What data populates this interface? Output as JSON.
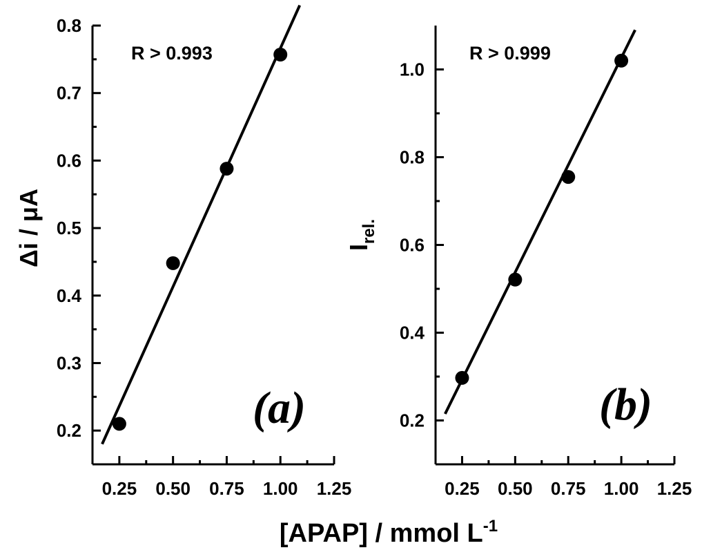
{
  "figure": {
    "xlabel_main": "[APAP] / mmol L",
    "xlabel_sup": "-1"
  },
  "chart_data": [
    {
      "type": "scatter",
      "panel_label": "(a)",
      "annotation": "R > 0.993",
      "ylabel": "Δi / μA",
      "ylabel_main": "Δi / μA",
      "xlabel": "[APAP] / mmol L-1",
      "xlim": [
        0.125,
        1.25
      ],
      "ylim": [
        0.15,
        0.8
      ],
      "xticks": [
        0.25,
        0.5,
        0.75,
        1.0,
        1.25
      ],
      "xtick_labels": [
        "0.25",
        "0.50",
        "0.75",
        "1.00",
        "1.25"
      ],
      "yticks": [
        0.2,
        0.3,
        0.4,
        0.5,
        0.6,
        0.7,
        0.8
      ],
      "ytick_labels": [
        "0.2",
        "0.3",
        "0.4",
        "0.5",
        "0.6",
        "0.7",
        "0.8"
      ],
      "x": [
        0.25,
        0.5,
        0.75,
        1.0
      ],
      "y": [
        0.21,
        0.448,
        0.588,
        0.757
      ],
      "fit_line": {
        "x": [
          0.17,
          1.09
        ],
        "y": [
          0.18,
          0.83
        ]
      }
    },
    {
      "type": "scatter",
      "panel_label": "(b)",
      "annotation": "R > 0.999",
      "ylabel": "Irel.",
      "ylabel_main": "I",
      "ylabel_sub": "rel.",
      "xlabel": "[APAP] / mmol L-1",
      "xlim": [
        0.125,
        1.25
      ],
      "ylim": [
        0.1,
        1.1
      ],
      "xticks": [
        0.25,
        0.5,
        0.75,
        1.0,
        1.25
      ],
      "xtick_labels": [
        "0.25",
        "0.50",
        "0.75",
        "1.00",
        "1.25"
      ],
      "yticks": [
        0.2,
        0.4,
        0.6,
        0.8,
        1.0
      ],
      "ytick_labels": [
        "0.2",
        "0.4",
        "0.6",
        "0.8",
        "1.0"
      ],
      "x": [
        0.25,
        0.5,
        0.75,
        1.0
      ],
      "y": [
        0.297,
        0.521,
        0.755,
        1.02
      ],
      "fit_line": {
        "x": [
          0.17,
          1.065
        ],
        "y": [
          0.215,
          1.09
        ]
      }
    }
  ]
}
